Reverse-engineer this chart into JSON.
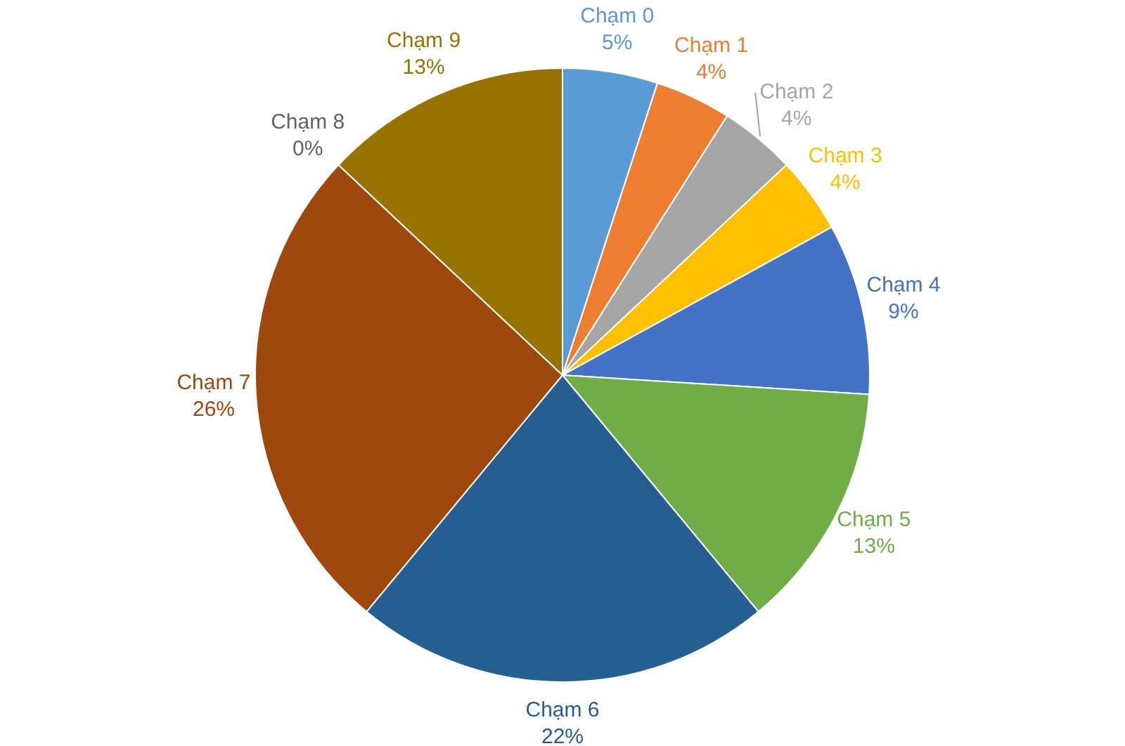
{
  "chart_data": {
    "type": "pie",
    "categories": [
      "Chạm 0",
      "Chạm 1",
      "Chạm 2",
      "Chạm 3",
      "Chạm 4",
      "Chạm 5",
      "Chạm 6",
      "Chạm 7",
      "Chạm 8",
      "Chạm 9"
    ],
    "values": [
      5,
      4,
      4,
      4,
      9,
      13,
      22,
      26,
      0,
      13
    ],
    "value_labels": [
      "5%",
      "4%",
      "4%",
      "4%",
      "9%",
      "13%",
      "22%",
      "26%",
      "0%",
      "13%"
    ],
    "colors": [
      "#5b9bd5",
      "#ed7d31",
      "#a5a5a5",
      "#ffc000",
      "#4472c4",
      "#70ad47",
      "#255e91",
      "#9e480e",
      "#636363",
      "#997300"
    ],
    "legend": false
  }
}
